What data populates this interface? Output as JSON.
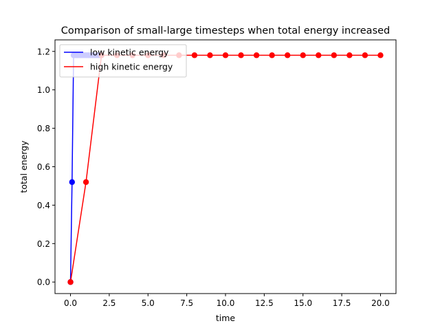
{
  "chart_data": {
    "type": "line",
    "title": "Comparison of small-large timesteps when total energy increased",
    "xlabel": "time",
    "ylabel": "total energy",
    "xlim": [
      -1.0,
      21.0
    ],
    "ylim": [
      -0.06,
      1.26
    ],
    "xticks": [
      0.0,
      2.5,
      5.0,
      7.5,
      10.0,
      12.5,
      15.0,
      17.5,
      20.0
    ],
    "xtick_labels": [
      "0.0",
      "2.5",
      "5.0",
      "7.5",
      "10.0",
      "12.5",
      "15.0",
      "17.5",
      "20.0"
    ],
    "yticks": [
      0.0,
      0.2,
      0.4,
      0.6,
      0.8,
      1.0,
      1.2
    ],
    "ytick_labels": [
      "0.0",
      "0.2",
      "0.4",
      "0.6",
      "0.8",
      "1.0",
      "1.2"
    ],
    "grid": false,
    "legend_position": "upper-left",
    "series": [
      {
        "name": "low kinetic energy",
        "color": "#0000ff",
        "x": [
          0.0,
          0.1,
          0.2,
          0.3,
          0.4,
          0.5,
          0.6,
          0.7,
          0.8,
          0.9,
          1.0,
          1.1,
          1.2,
          1.3,
          1.4,
          1.5,
          1.6,
          1.7,
          1.8,
          1.9,
          2.0
        ],
        "y": [
          0.0,
          0.52,
          1.18,
          1.18,
          1.18,
          1.18,
          1.18,
          1.18,
          1.18,
          1.18,
          1.18,
          1.18,
          1.18,
          1.18,
          1.18,
          1.18,
          1.18,
          1.18,
          1.18,
          1.18,
          1.18
        ]
      },
      {
        "name": "high kinetic energy",
        "color": "#ff0000",
        "x": [
          0,
          1,
          2,
          3,
          4,
          5,
          6,
          7,
          8,
          9,
          10,
          11,
          12,
          13,
          14,
          15,
          16,
          17,
          18,
          19,
          20
        ],
        "y": [
          0.0,
          0.52,
          1.18,
          1.18,
          1.18,
          1.18,
          1.18,
          1.18,
          1.18,
          1.18,
          1.18,
          1.18,
          1.18,
          1.18,
          1.18,
          1.18,
          1.18,
          1.18,
          1.18,
          1.18,
          1.18
        ]
      }
    ]
  }
}
